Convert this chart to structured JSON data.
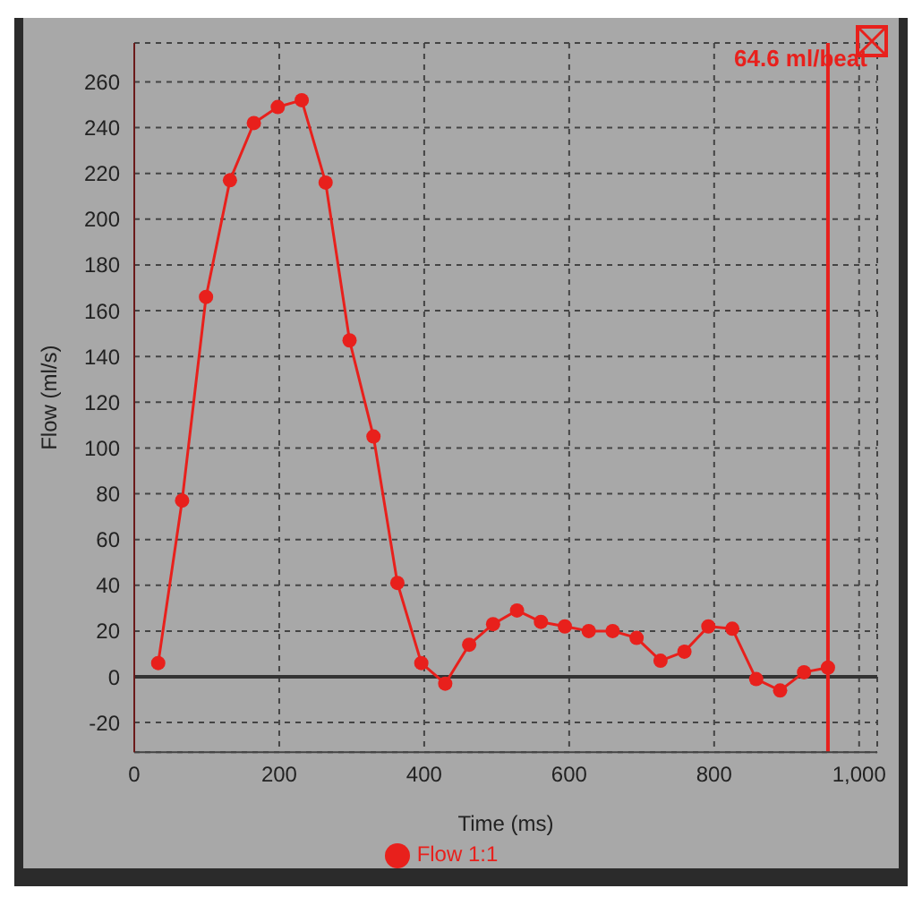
{
  "chart_data": {
    "type": "line",
    "xlabel": "Time (ms)",
    "ylabel": "Flow (ml/s)",
    "x": [
      33,
      66,
      99,
      132,
      165,
      198,
      231,
      264,
      297,
      330,
      363,
      396,
      429,
      462,
      495,
      528,
      561,
      594,
      627,
      660,
      693,
      726,
      759,
      792,
      825,
      858,
      891,
      924,
      957
    ],
    "series": [
      {
        "name": "Flow 1:1",
        "color": "#e8201c",
        "values": [
          6,
          77,
          166,
          217,
          242,
          249,
          252,
          216,
          147,
          105,
          41,
          6,
          -3,
          14,
          23,
          29,
          24,
          22,
          20,
          20,
          17,
          7,
          11,
          22,
          21,
          -1,
          -6,
          2,
          4
        ]
      }
    ],
    "xlim": [
      0,
      1025
    ],
    "xticks": [
      0,
      200,
      400,
      600,
      800,
      {
        "value": 1000,
        "label": "1,000"
      }
    ],
    "ylim": [
      -33,
      277
    ],
    "yticks": [
      -20,
      0,
      20,
      40,
      60,
      80,
      100,
      120,
      140,
      160,
      180,
      200,
      220,
      240,
      260
    ],
    "ref_lines": [
      {
        "axis": "y",
        "value": 0,
        "color": "#333333"
      },
      {
        "axis": "x",
        "value": 957,
        "label": "64.6 ml/beat",
        "color": "#e8201c"
      }
    ],
    "grid": true,
    "legend": "bottom",
    "marker": "circle",
    "line_style": "solid"
  }
}
